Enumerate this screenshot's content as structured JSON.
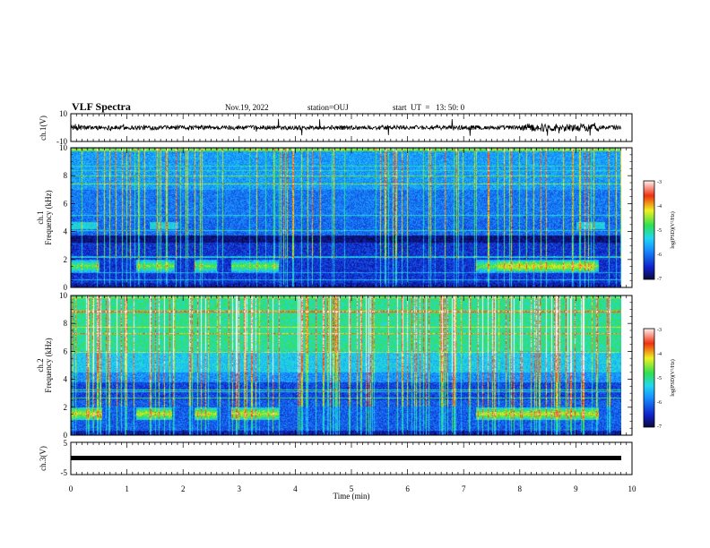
{
  "header": {
    "title": "VLF Spectra",
    "date": "Nov.19, 2022",
    "station": "station=OUJ",
    "start": "start  UT  =   13: 50: 0"
  },
  "chart_data": {
    "type": "heatmap",
    "xlabel": "Time (min)",
    "xlim": [
      0,
      10
    ],
    "xticks": [
      "0",
      "1",
      "2",
      "3",
      "4",
      "5",
      "6",
      "7",
      "8",
      "9",
      "10"
    ],
    "panels": [
      {
        "id": "ch1-waveform",
        "type": "line",
        "ylabel": "ch.1(V)",
        "ylim": [
          -10,
          10
        ],
        "yticks": [
          "10",
          "-10"
        ],
        "data_end_min": 9.8
      },
      {
        "id": "ch1-spectrogram",
        "type": "heatmap",
        "ylabel": "ch.1",
        "ylabel2": "Frequency (kHz)",
        "ylim": [
          0,
          10
        ],
        "yticks": [
          "0",
          "2",
          "4",
          "6",
          "8",
          "10"
        ],
        "colorbar": {
          "label": "log(PSD)(V²/Hz)",
          "ticks": [
            "-3",
            "-4",
            "-5",
            "-6",
            "-7"
          ],
          "range": [
            -7,
            -3
          ]
        },
        "bursts_min": [
          [
            0.0,
            0.5
          ],
          [
            1.15,
            1.85
          ],
          [
            2.2,
            2.6
          ],
          [
            2.85,
            3.7
          ],
          [
            7.2,
            9.4
          ]
        ],
        "burst_freq_khz": 1.5
      },
      {
        "id": "ch2-spectrogram",
        "type": "heatmap",
        "ylabel": "ch.2",
        "ylabel2": "Frequency (kHz)",
        "ylim": [
          0,
          10
        ],
        "yticks": [
          "0",
          "2",
          "4",
          "6",
          "8",
          "10"
        ],
        "colorbar": {
          "label": "log(PSD)(V²/Hz)",
          "ticks": [
            "-3",
            "-4",
            "-5",
            "-6",
            "-7"
          ],
          "range": [
            -7,
            -3
          ]
        },
        "bursts_min": [
          [
            0.0,
            0.55
          ],
          [
            1.15,
            1.8
          ],
          [
            2.2,
            2.6
          ],
          [
            2.85,
            3.7
          ],
          [
            7.2,
            9.4
          ]
        ],
        "burst_freq_khz": 1.5
      },
      {
        "id": "ch3-waveform",
        "type": "line",
        "ylabel": "ch.3(V)",
        "ylim": [
          -5,
          5
        ],
        "yticks": [
          "5",
          "-5"
        ],
        "constant_value": 0
      }
    ]
  }
}
